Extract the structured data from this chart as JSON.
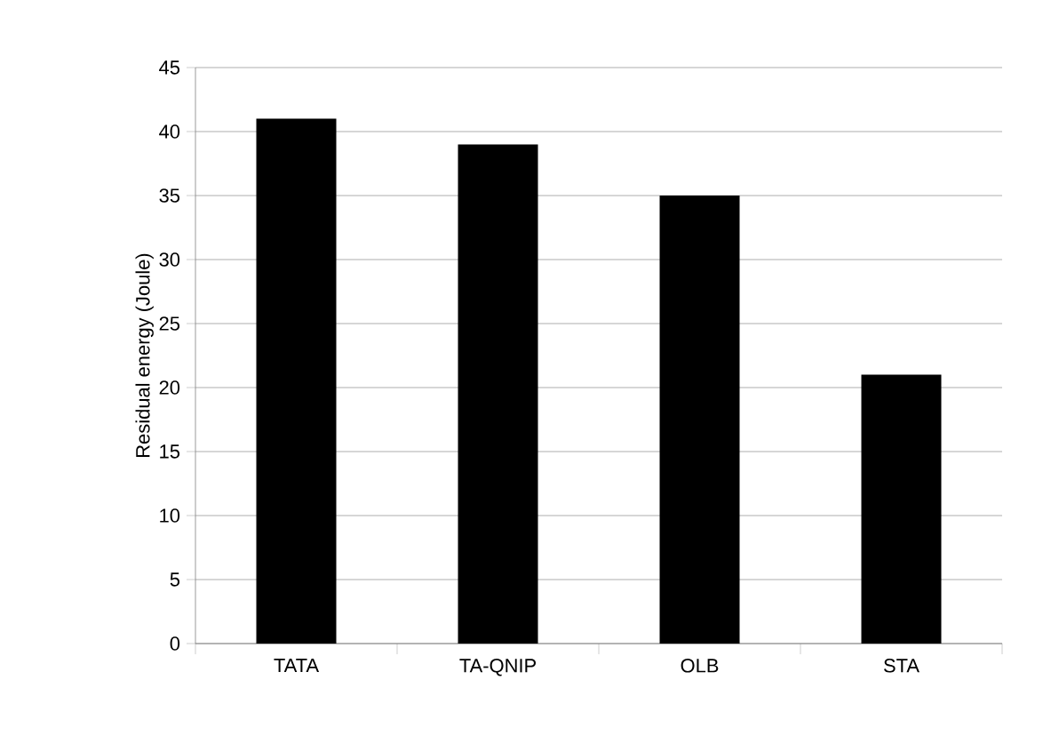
{
  "chart_data": {
    "type": "bar",
    "ylabel": "Residual energy (Joule)",
    "categories": [
      "TATA",
      "TA-QNIP",
      "OLB",
      "STA"
    ],
    "values": [
      41,
      39,
      35,
      21
    ],
    "color": "#000000",
    "ylim": [
      0,
      45
    ],
    "yticks": [
      0,
      5,
      10,
      15,
      20,
      25,
      30,
      35,
      40,
      45
    ],
    "grid": "y"
  }
}
